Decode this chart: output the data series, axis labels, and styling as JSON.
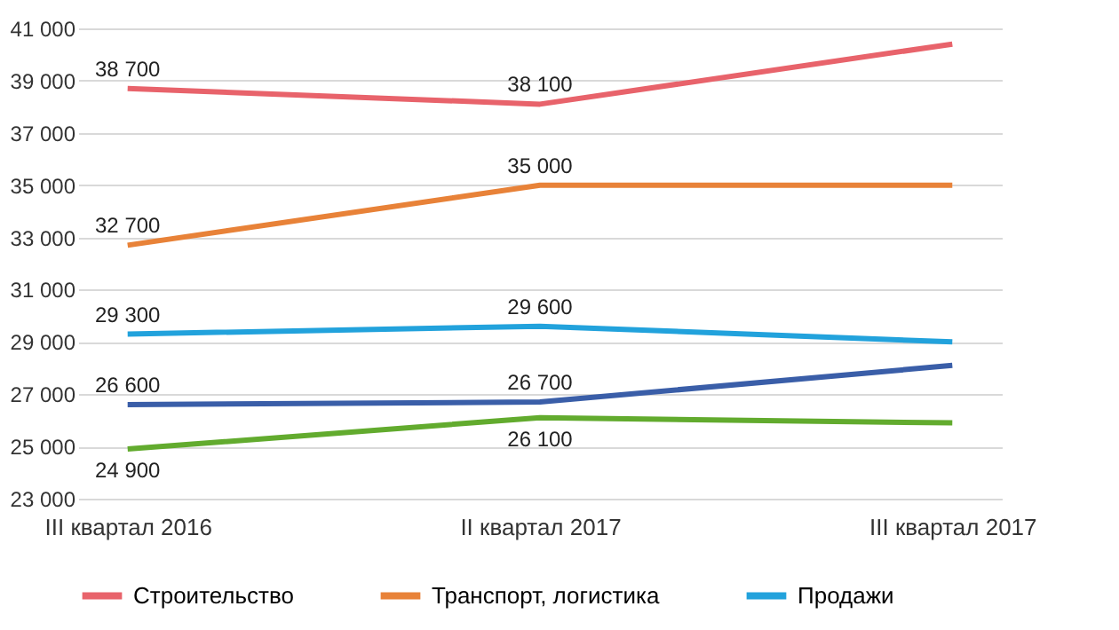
{
  "chart_data": {
    "type": "line",
    "categories": [
      "III квартал 2016",
      "II квартал 2017",
      "III квартал 2017"
    ],
    "series": [
      {
        "name": "Строительство",
        "color": "#e8636b",
        "values": [
          38700,
          38100,
          40400
        ],
        "value_labels": [
          "38 700",
          "38 100",
          null
        ]
      },
      {
        "name": "Транспорт, логистика",
        "color": "#e88238",
        "values": [
          32700,
          35000,
          35000
        ],
        "value_labels": [
          "32 700",
          "35 000",
          null
        ]
      },
      {
        "name": "Продажи",
        "color": "#22a2dc",
        "values": [
          29300,
          29600,
          29000
        ],
        "value_labels": [
          "29 300",
          "29 600",
          null
        ]
      },
      {
        "color": "#3a5ea8",
        "values": [
          26600,
          26700,
          28100
        ],
        "value_labels": [
          "26 600",
          "26 700",
          null
        ]
      },
      {
        "color": "#62ab2e",
        "values": [
          24900,
          26100,
          25900
        ],
        "value_labels": [
          "24 900",
          "26 100",
          null
        ]
      }
    ],
    "ylim": [
      23000,
      41000
    ],
    "yticks": [
      23000,
      25000,
      27000,
      29000,
      31000,
      33000,
      35000,
      37000,
      39000,
      41000
    ],
    "grid": "y",
    "legend": "bottom",
    "marker": "none",
    "line_style": "solid"
  }
}
